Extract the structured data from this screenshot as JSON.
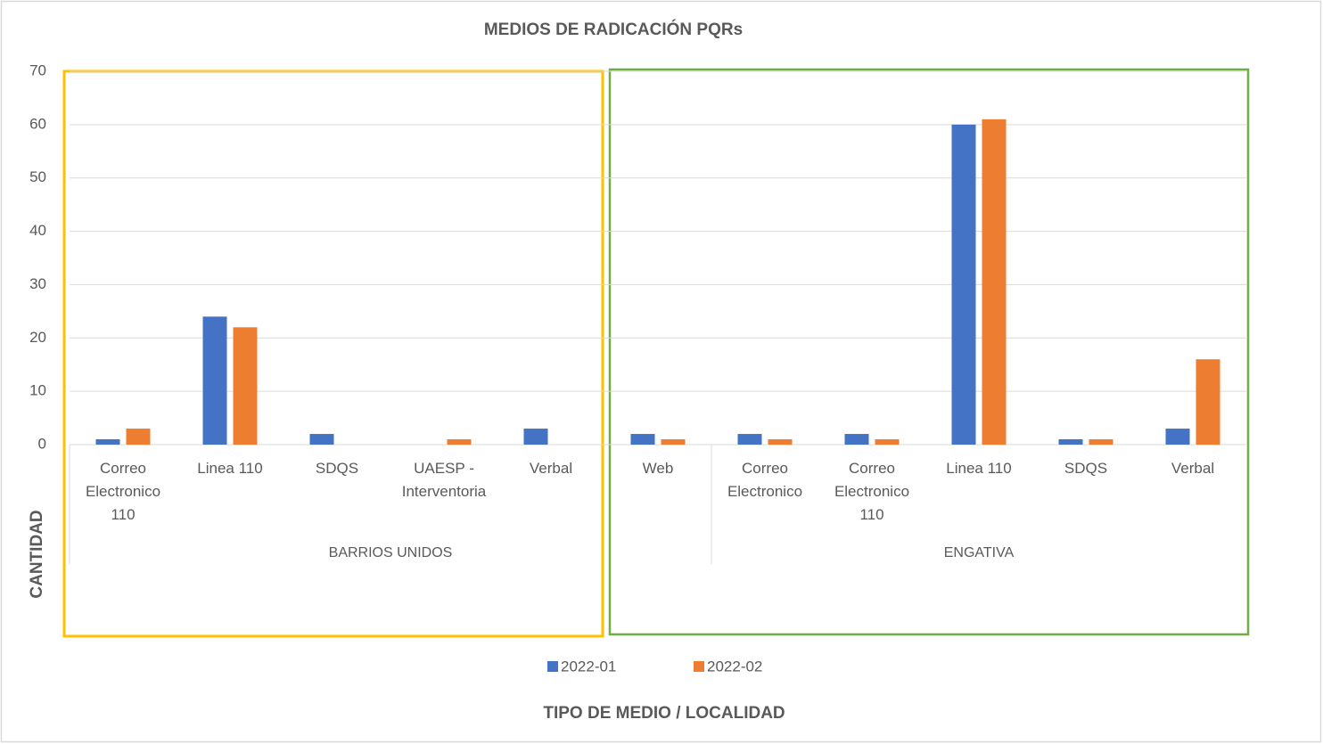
{
  "chart_data": {
    "type": "bar",
    "title": "MEDIOS DE RADICACIÓN PQRs",
    "x_label": "TIPO DE MEDIO / LOCALIDAD",
    "y_label": "CANTIDAD",
    "groups": [
      {
        "name": "BARRIOS UNIDOS",
        "categories": [
          "Correo Electronico 110",
          "Linea 110",
          "SDQS",
          "UAESP - Interventoria",
          "Verbal",
          "Web"
        ]
      },
      {
        "name": "ENGATIVA",
        "categories": [
          "Correo Electronico",
          "Correo Electronico 110",
          "Linea 110",
          "SDQS",
          "Verbal"
        ]
      }
    ],
    "series": [
      {
        "name": "2022-01",
        "color": "#4472c4",
        "values": [
          1,
          24,
          2,
          null,
          3,
          2,
          2,
          2,
          60,
          1,
          3
        ]
      },
      {
        "name": "2022-02",
        "color": "#ed7d31",
        "values": [
          3,
          22,
          null,
          1,
          null,
          1,
          1,
          1,
          61,
          1,
          16
        ]
      }
    ],
    "ylim": [
      0,
      70
    ],
    "yticks": [
      0,
      10,
      20,
      30,
      40,
      50,
      60,
      70
    ],
    "grid": true,
    "legend": "bottom"
  }
}
